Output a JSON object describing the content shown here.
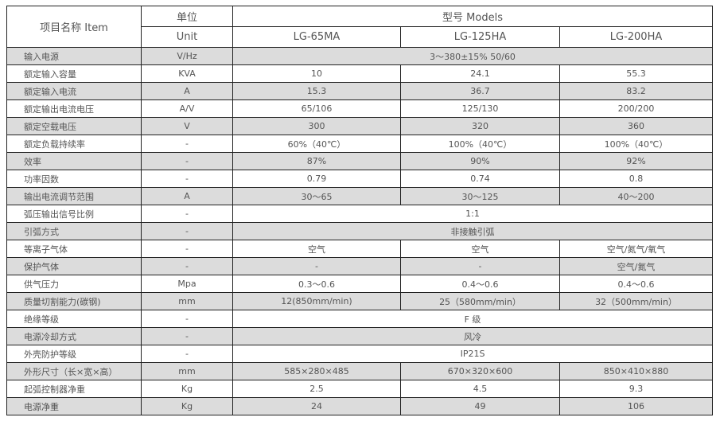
{
  "header": {
    "item": "项目名称 Item",
    "unit_cn": "单位",
    "unit_en": "Unit",
    "models": "型号 Models",
    "model_names": [
      "LG-65MA",
      "LG-125HA",
      "LG-200HA"
    ]
  },
  "rows": [
    {
      "name": "输入电源",
      "unit": "V/Hz",
      "span": "3～380±15% 50/60"
    },
    {
      "name": "额定输入容量",
      "unit": "KVA",
      "v": [
        "10",
        "24.1",
        "55.3"
      ]
    },
    {
      "name": "额定输入电流",
      "unit": "A",
      "v": [
        "15.3",
        "36.7",
        "83.2"
      ]
    },
    {
      "name": "额定输出电流电压",
      "unit": "A/V",
      "v": [
        "65/106",
        "125/130",
        "200/200"
      ]
    },
    {
      "name": "额定空载电压",
      "unit": "V",
      "v": [
        "300",
        "320",
        "360"
      ]
    },
    {
      "name": "额定负载持续率",
      "unit": "-",
      "v": [
        "60%（40℃）",
        "100%（40℃）",
        "100%（40℃）"
      ]
    },
    {
      "name": "效率",
      "unit": "-",
      "v": [
        "87%",
        "90%",
        "92%"
      ]
    },
    {
      "name": "功率因数",
      "unit": "-",
      "v": [
        "0.79",
        "0.74",
        "0.8"
      ]
    },
    {
      "name": "输出电流调节范围",
      "unit": "A",
      "v": [
        "30～65",
        "30～125",
        "40～200"
      ]
    },
    {
      "name": "弧压输出信号比例",
      "unit": "-",
      "span": "1:1"
    },
    {
      "name": "引弧方式",
      "unit": "-",
      "span": "非接触引弧"
    },
    {
      "name": "等离子气体",
      "unit": "-",
      "v": [
        "空气",
        "空气",
        "空气/氮气/氧气"
      ]
    },
    {
      "name": "保护气体",
      "unit": "-",
      "v": [
        "-",
        "-",
        "空气/氮气"
      ]
    },
    {
      "name": "供气压力",
      "unit": "Mpa",
      "v": [
        "0.3～0.6",
        "0.4～0.6",
        "0.4～0.6"
      ]
    },
    {
      "name": "质量切割能力(碳钢)",
      "unit": "mm",
      "v": [
        "12(850mm/min)",
        "25（580mm/min）",
        "32（500mm/min）"
      ]
    },
    {
      "name": "绝缘等级",
      "unit": "-",
      "span": "F 级"
    },
    {
      "name": "电源冷却方式",
      "unit": "-",
      "span": "风冷"
    },
    {
      "name": "外壳防护等级",
      "unit": "-",
      "span": "IP21S"
    },
    {
      "name": "外形尺寸（长×宽×高）",
      "unit": "mm",
      "v": [
        "585×280×485",
        "670×320×600",
        "850×410×880"
      ]
    },
    {
      "name": "起弧控制器净重",
      "unit": "Kg",
      "v": [
        "2.5",
        "4.5",
        "9.3"
      ]
    },
    {
      "name": "电源净重",
      "unit": "Kg",
      "v": [
        "24",
        "49",
        "106"
      ]
    }
  ],
  "colors": {
    "stripe": "#dcdcdc",
    "border": "#222222",
    "text": "#555555"
  }
}
